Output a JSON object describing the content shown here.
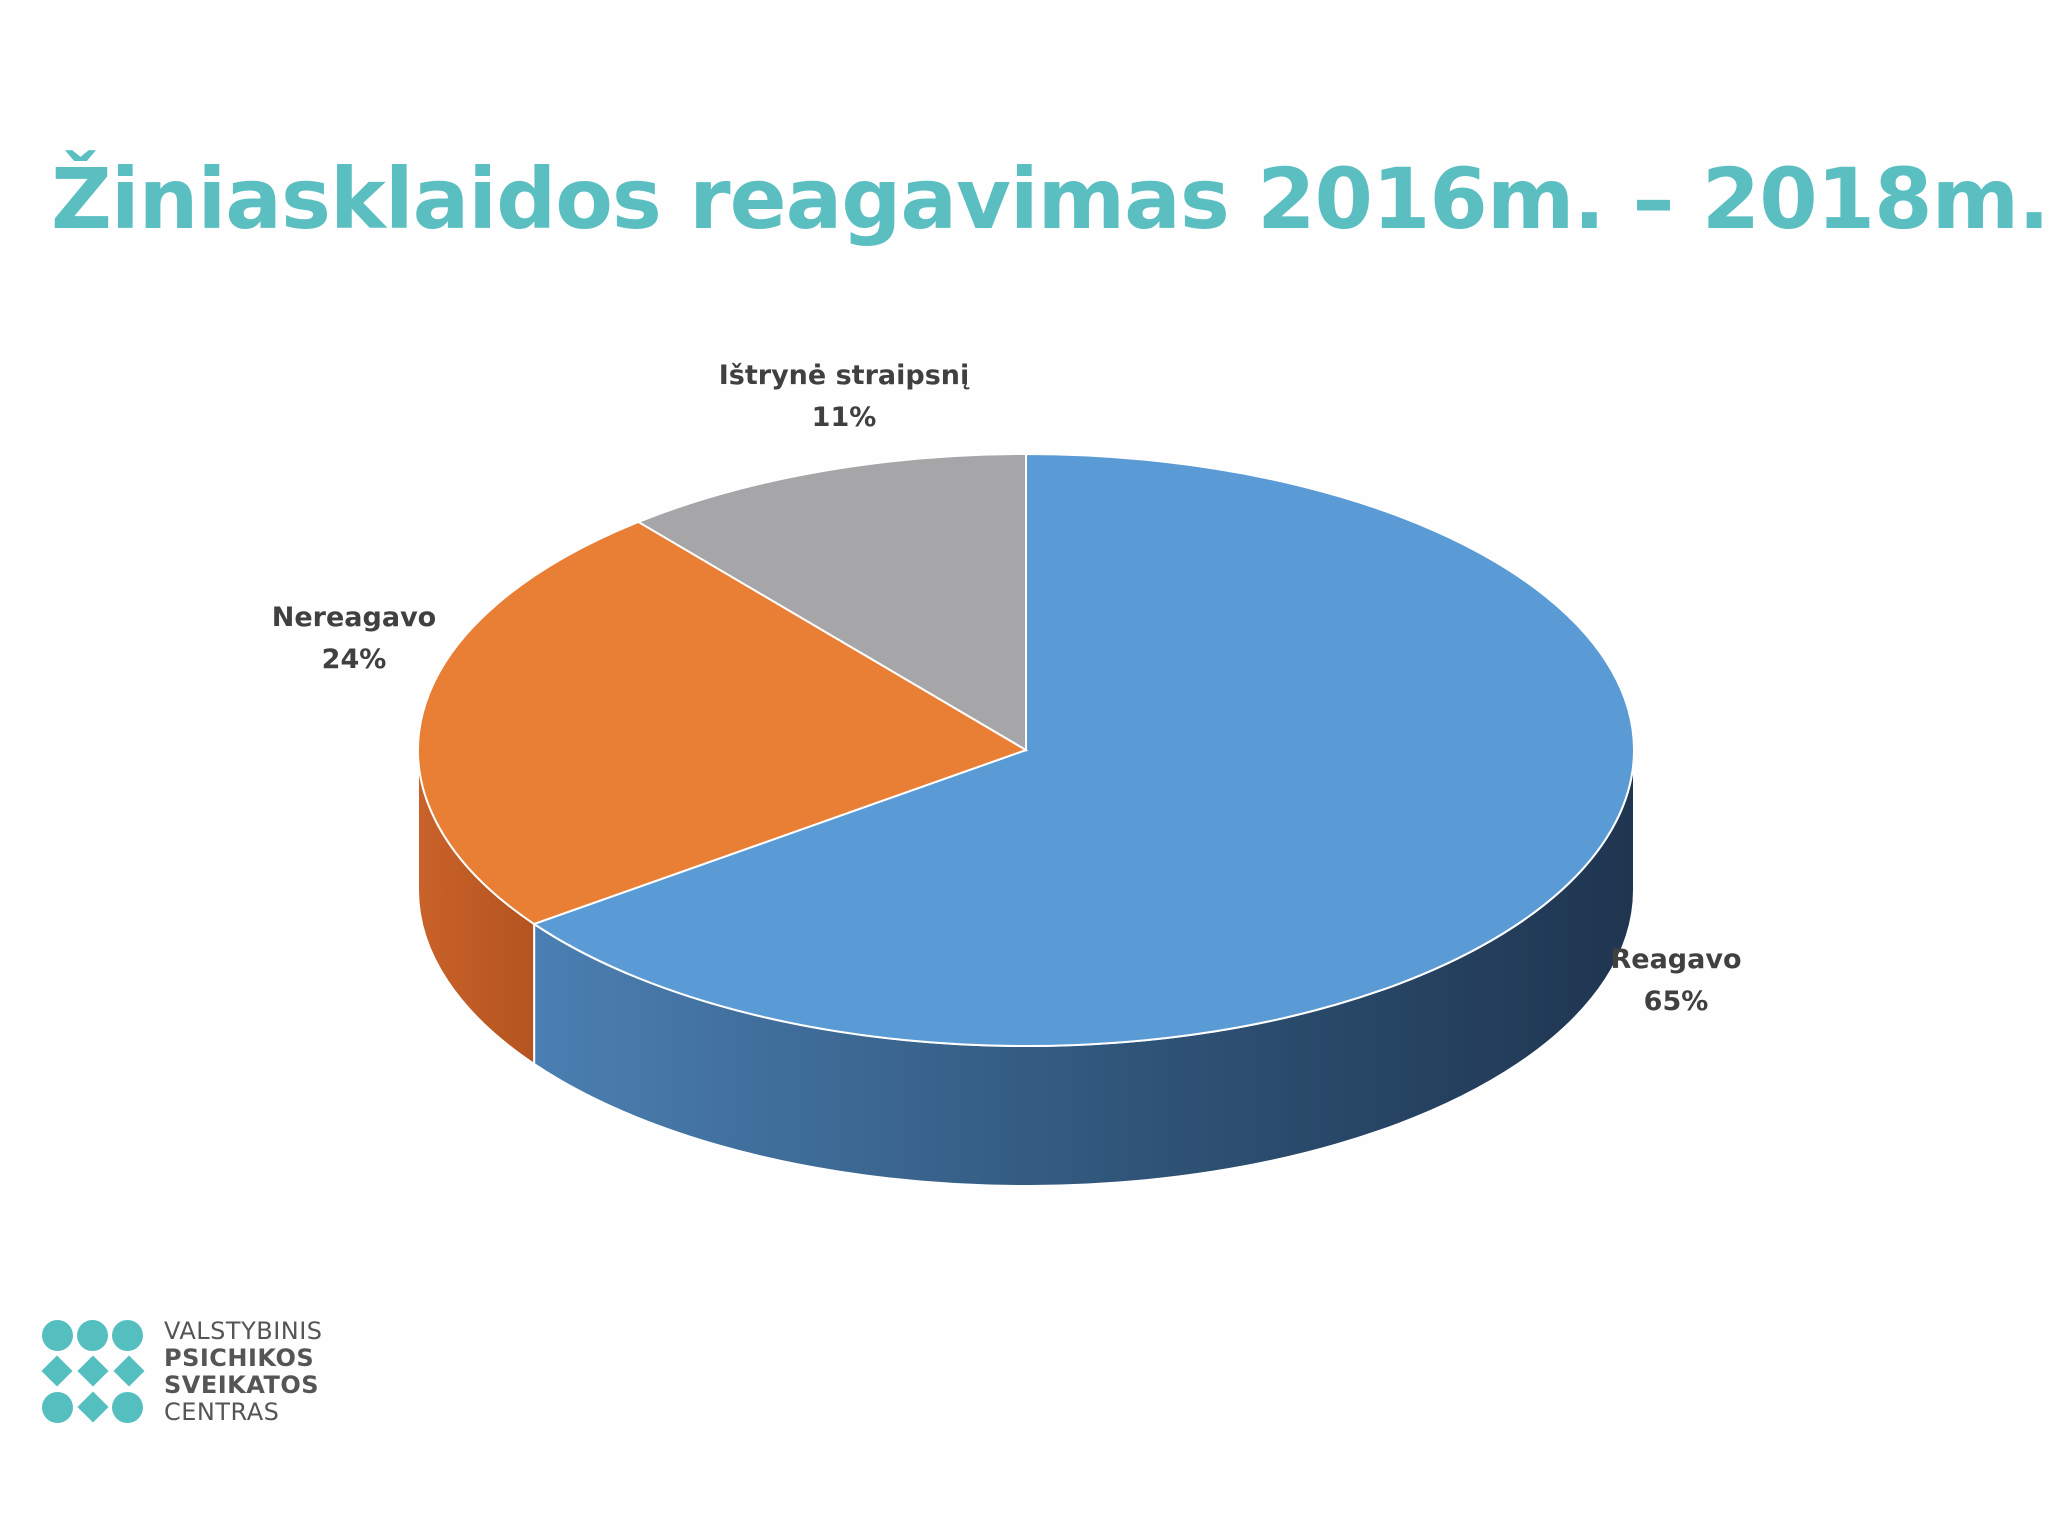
{
  "title": "Žiniasklaidos reagavimas 2016m. – 2018m.",
  "chart_data": {
    "type": "pie",
    "style": "3d",
    "title": "Žiniasklaidos reagavimas 2016m. – 2018m.",
    "slices": [
      {
        "label": "Reagavo",
        "value": 65,
        "value_label": "65%",
        "color": "#5b9bd5"
      },
      {
        "label": "Nereagavo",
        "value": 24,
        "value_label": "24%",
        "color": "#ed7d31"
      },
      {
        "label": "Ištrynė straipsnį",
        "value": 11,
        "value_label": "11%",
        "color": "#a5a5a5"
      }
    ]
  },
  "logo": {
    "line1": "VALSTYBINIS",
    "line2": "PSICHIKOS",
    "line3": "SVEIKATOS",
    "line4": "CENTRAS",
    "accent": "#55bfbf"
  }
}
